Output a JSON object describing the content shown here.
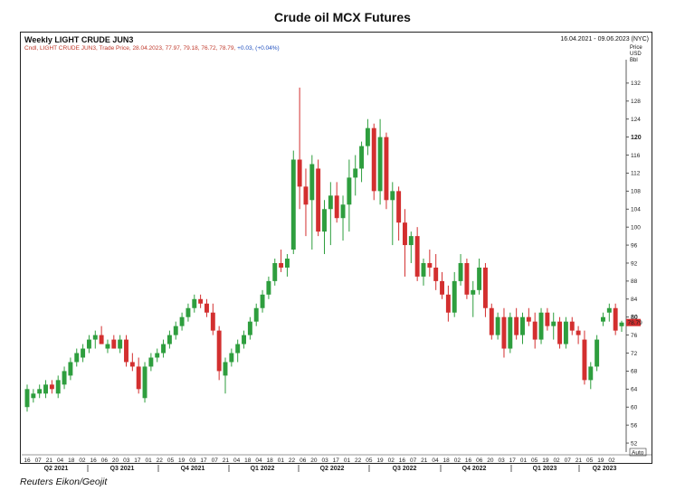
{
  "page_title": "Crude oil MCX Futures",
  "source": "Reuters Eikon/Geojit",
  "chart_data": {
    "type": "candlestick",
    "title": "Weekly LIGHT CRUDE JUN3",
    "subtitle_prefix": "Cndl, LIGHT CRUDE JUN3, Trade Price, 28.04.2023, 77.97, 79.18, 76.72, 78.79,",
    "subtitle_change": "+0.03, (+0.04%)",
    "date_range": "16.04.2021 - 09.06.2023 (NYC)",
    "y_unit": [
      "Price",
      "USD",
      "Bbl"
    ],
    "ylim": [
      50,
      136
    ],
    "y_ticks": [
      52,
      56,
      60,
      64,
      68,
      72,
      76,
      80,
      84,
      88,
      92,
      96,
      100,
      104,
      108,
      112,
      116,
      120,
      124,
      128,
      132
    ],
    "y_ticks_bold": [
      80,
      120
    ],
    "last_price_label": "78.79",
    "last_price": 78.79,
    "axis_button": "Auto",
    "x_tick_labels": [
      "16",
      "07",
      "21",
      "04",
      "18",
      "02",
      "16",
      "06",
      "20",
      "03",
      "17",
      "01",
      "22",
      "05",
      "19",
      "03",
      "17",
      "07",
      "21",
      "04",
      "18",
      "04",
      "18",
      "01",
      "22",
      "06",
      "20",
      "03",
      "17",
      "01",
      "22",
      "05",
      "19",
      "02",
      "16",
      "07",
      "21",
      "04",
      "18",
      "02",
      "16",
      "06",
      "20",
      "03",
      "17",
      "01",
      "05",
      "19",
      "02",
      "07",
      "21",
      "05",
      "19",
      "02"
    ],
    "quarters": [
      "Q2 2021",
      "Q3 2021",
      "Q4 2021",
      "Q1 2022",
      "Q2 2022",
      "Q3 2022",
      "Q4 2022",
      "Q1 2023",
      "Q2 2023"
    ],
    "colors": {
      "up": "#2e9e3e",
      "down": "#d32f2f",
      "last_price_bg": "#d32f2f"
    },
    "candles": [
      {
        "o": 60,
        "h": 65,
        "l": 59,
        "c": 64
      },
      {
        "o": 62,
        "h": 64,
        "l": 61,
        "c": 63
      },
      {
        "o": 63,
        "h": 65,
        "l": 62,
        "c": 64
      },
      {
        "o": 63,
        "h": 66,
        "l": 62,
        "c": 65
      },
      {
        "o": 65,
        "h": 66,
        "l": 63,
        "c": 64
      },
      {
        "o": 63,
        "h": 67,
        "l": 62,
        "c": 66
      },
      {
        "o": 65,
        "h": 69,
        "l": 64,
        "c": 68
      },
      {
        "o": 67,
        "h": 71,
        "l": 66,
        "c": 70
      },
      {
        "o": 70,
        "h": 73,
        "l": 69,
        "c": 72
      },
      {
        "o": 71,
        "h": 74,
        "l": 70,
        "c": 73
      },
      {
        "o": 73,
        "h": 76,
        "l": 72,
        "c": 75
      },
      {
        "o": 75,
        "h": 77,
        "l": 73,
        "c": 76
      },
      {
        "o": 76,
        "h": 78,
        "l": 74,
        "c": 74
      },
      {
        "o": 73,
        "h": 75,
        "l": 72,
        "c": 74
      },
      {
        "o": 75,
        "h": 76,
        "l": 73,
        "c": 73
      },
      {
        "o": 73,
        "h": 76,
        "l": 72,
        "c": 75
      },
      {
        "o": 75,
        "h": 76,
        "l": 69,
        "c": 70
      },
      {
        "o": 70,
        "h": 72,
        "l": 68,
        "c": 69
      },
      {
        "o": 69,
        "h": 71,
        "l": 63,
        "c": 64
      },
      {
        "o": 62,
        "h": 70,
        "l": 61,
        "c": 69
      },
      {
        "o": 69,
        "h": 72,
        "l": 68,
        "c": 71
      },
      {
        "o": 71,
        "h": 73,
        "l": 70,
        "c": 72
      },
      {
        "o": 72,
        "h": 75,
        "l": 71,
        "c": 74
      },
      {
        "o": 74,
        "h": 77,
        "l": 73,
        "c": 76
      },
      {
        "o": 76,
        "h": 79,
        "l": 75,
        "c": 78
      },
      {
        "o": 78,
        "h": 81,
        "l": 77,
        "c": 80
      },
      {
        "o": 80,
        "h": 83,
        "l": 79,
        "c": 82
      },
      {
        "o": 82,
        "h": 85,
        "l": 81,
        "c": 84
      },
      {
        "o": 84,
        "h": 85,
        "l": 82,
        "c": 83
      },
      {
        "o": 83,
        "h": 84,
        "l": 80,
        "c": 81
      },
      {
        "o": 81,
        "h": 83,
        "l": 76,
        "c": 77
      },
      {
        "o": 77,
        "h": 78,
        "l": 66,
        "c": 68
      },
      {
        "o": 67,
        "h": 71,
        "l": 63,
        "c": 70
      },
      {
        "o": 70,
        "h": 73,
        "l": 69,
        "c": 72
      },
      {
        "o": 72,
        "h": 75,
        "l": 70,
        "c": 74
      },
      {
        "o": 74,
        "h": 77,
        "l": 73,
        "c": 76
      },
      {
        "o": 76,
        "h": 80,
        "l": 75,
        "c": 79
      },
      {
        "o": 79,
        "h": 83,
        "l": 78,
        "c": 82
      },
      {
        "o": 82,
        "h": 86,
        "l": 81,
        "c": 85
      },
      {
        "o": 85,
        "h": 89,
        "l": 84,
        "c": 88
      },
      {
        "o": 88,
        "h": 93,
        "l": 87,
        "c": 92
      },
      {
        "o": 92,
        "h": 95,
        "l": 90,
        "c": 91
      },
      {
        "o": 91,
        "h": 94,
        "l": 89,
        "c": 93
      },
      {
        "o": 95,
        "h": 117,
        "l": 94,
        "c": 115
      },
      {
        "o": 115,
        "h": 131,
        "l": 104,
        "c": 109
      },
      {
        "o": 109,
        "h": 113,
        "l": 98,
        "c": 105
      },
      {
        "o": 106,
        "h": 116,
        "l": 95,
        "c": 114
      },
      {
        "o": 113,
        "h": 115,
        "l": 98,
        "c": 99
      },
      {
        "o": 99,
        "h": 106,
        "l": 94,
        "c": 104
      },
      {
        "o": 104,
        "h": 110,
        "l": 96,
        "c": 107
      },
      {
        "o": 107,
        "h": 110,
        "l": 101,
        "c": 102
      },
      {
        "o": 102,
        "h": 107,
        "l": 97,
        "c": 105
      },
      {
        "o": 105,
        "h": 115,
        "l": 99,
        "c": 111
      },
      {
        "o": 111,
        "h": 116,
        "l": 107,
        "c": 113
      },
      {
        "o": 113,
        "h": 119,
        "l": 110,
        "c": 118
      },
      {
        "o": 118,
        "h": 124,
        "l": 116,
        "c": 122
      },
      {
        "o": 122,
        "h": 123,
        "l": 106,
        "c": 108
      },
      {
        "o": 108,
        "h": 124,
        "l": 105,
        "c": 120
      },
      {
        "o": 120,
        "h": 121,
        "l": 104,
        "c": 106
      },
      {
        "o": 106,
        "h": 110,
        "l": 96,
        "c": 108
      },
      {
        "o": 108,
        "h": 109,
        "l": 97,
        "c": 101
      },
      {
        "o": 101,
        "h": 104,
        "l": 89,
        "c": 96
      },
      {
        "o": 96,
        "h": 99,
        "l": 92,
        "c": 98
      },
      {
        "o": 98,
        "h": 100,
        "l": 88,
        "c": 89
      },
      {
        "o": 89,
        "h": 93,
        "l": 87,
        "c": 92
      },
      {
        "o": 92,
        "h": 95,
        "l": 89,
        "c": 91
      },
      {
        "o": 91,
        "h": 94,
        "l": 86,
        "c": 88
      },
      {
        "o": 88,
        "h": 90,
        "l": 84,
        "c": 85
      },
      {
        "o": 85,
        "h": 87,
        "l": 79,
        "c": 81
      },
      {
        "o": 81,
        "h": 90,
        "l": 80,
        "c": 88
      },
      {
        "o": 88,
        "h": 94,
        "l": 87,
        "c": 92
      },
      {
        "o": 92,
        "h": 93,
        "l": 84,
        "c": 85
      },
      {
        "o": 85,
        "h": 88,
        "l": 80,
        "c": 86
      },
      {
        "o": 86,
        "h": 93,
        "l": 85,
        "c": 91
      },
      {
        "o": 91,
        "h": 92,
        "l": 80,
        "c": 82
      },
      {
        "o": 82,
        "h": 83,
        "l": 75,
        "c": 76
      },
      {
        "o": 76,
        "h": 81,
        "l": 75,
        "c": 80
      },
      {
        "o": 80,
        "h": 82,
        "l": 71,
        "c": 73
      },
      {
        "o": 73,
        "h": 81,
        "l": 72,
        "c": 80
      },
      {
        "o": 80,
        "h": 82,
        "l": 75,
        "c": 76
      },
      {
        "o": 76,
        "h": 81,
        "l": 74,
        "c": 80
      },
      {
        "o": 80,
        "h": 82,
        "l": 78,
        "c": 79
      },
      {
        "o": 79,
        "h": 81,
        "l": 73,
        "c": 75
      },
      {
        "o": 75,
        "h": 82,
        "l": 74,
        "c": 81
      },
      {
        "o": 81,
        "h": 82,
        "l": 77,
        "c": 78
      },
      {
        "o": 78,
        "h": 81,
        "l": 75,
        "c": 79
      },
      {
        "o": 79,
        "h": 80,
        "l": 73,
        "c": 74
      },
      {
        "o": 74,
        "h": 80,
        "l": 73,
        "c": 79
      },
      {
        "o": 79,
        "h": 80,
        "l": 76,
        "c": 77
      },
      {
        "o": 77,
        "h": 78,
        "l": 74,
        "c": 76
      },
      {
        "o": 75,
        "h": 77,
        "l": 65,
        "c": 66
      },
      {
        "o": 66,
        "h": 70,
        "l": 64,
        "c": 69
      },
      {
        "o": 69,
        "h": 76,
        "l": 68,
        "c": 75
      },
      {
        "o": 79,
        "h": 81,
        "l": 78,
        "c": 80
      },
      {
        "o": 81,
        "h": 83,
        "l": 79,
        "c": 82
      },
      {
        "o": 82,
        "h": 83,
        "l": 76,
        "c": 77
      },
      {
        "o": 77.97,
        "h": 79.18,
        "l": 76.72,
        "c": 78.79
      }
    ]
  }
}
